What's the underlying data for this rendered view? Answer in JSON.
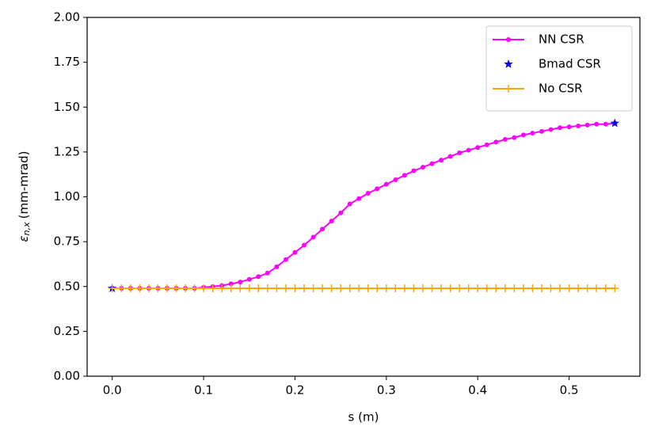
{
  "chart_data": {
    "type": "line",
    "xlabel": "s (m)",
    "ylabel": {
      "symbol": "ε",
      "subscript": "n,x",
      "unit": "(mm-mrad)"
    },
    "xlim": [
      -0.0275,
      0.5775
    ],
    "ylim": [
      0,
      2
    ],
    "xticks": [
      {
        "value": 0,
        "label": "0.0"
      },
      0.1,
      0.2,
      0.3,
      0.4,
      0.5
    ],
    "yticks": [
      {
        "value": 0,
        "label": "0.00"
      },
      0.25,
      {
        "value": 0.5,
        "label": "0.50"
      },
      0.75,
      {
        "value": 1,
        "label": "1.00"
      },
      1.25,
      {
        "value": 1.5,
        "label": "1.50"
      },
      1.75,
      {
        "value": 2,
        "label": "2.00"
      }
    ],
    "legend": "upper right",
    "series": [
      {
        "name": "NN CSR",
        "color": "#ff00ff",
        "marker": "dot",
        "line": true,
        "x": [
          0,
          0.01,
          0.02,
          0.03,
          0.04,
          0.05,
          0.06,
          0.07,
          0.08,
          0.09,
          0.1,
          0.11,
          0.12,
          0.13,
          0.14,
          0.15,
          0.16,
          0.17,
          0.18,
          0.19,
          0.2,
          0.21,
          0.22,
          0.23,
          0.24,
          0.25,
          0.26,
          0.27,
          0.28,
          0.29,
          0.3,
          0.31,
          0.32,
          0.33,
          0.34,
          0.35,
          0.36,
          0.37,
          0.38,
          0.39,
          0.4,
          0.41,
          0.42,
          0.43,
          0.44,
          0.45,
          0.46,
          0.47,
          0.48,
          0.49,
          0.5,
          0.51,
          0.52,
          0.53,
          0.54,
          0.55
        ],
        "values": [
          0.49,
          0.49,
          0.49,
          0.49,
          0.49,
          0.49,
          0.49,
          0.49,
          0.49,
          0.49,
          0.495,
          0.5,
          0.505,
          0.515,
          0.525,
          0.54,
          0.555,
          0.575,
          0.61,
          0.65,
          0.69,
          0.73,
          0.775,
          0.82,
          0.865,
          0.91,
          0.96,
          0.99,
          1.02,
          1.045,
          1.07,
          1.095,
          1.12,
          1.145,
          1.165,
          1.185,
          1.205,
          1.225,
          1.245,
          1.26,
          1.275,
          1.29,
          1.305,
          1.32,
          1.33,
          1.345,
          1.355,
          1.365,
          1.375,
          1.385,
          1.39,
          1.395,
          1.4,
          1.405,
          1.405,
          1.41
        ]
      },
      {
        "name": "Bmad CSR",
        "color": "#0000ff",
        "marker": "star",
        "line": false,
        "x": [
          0,
          0.55
        ],
        "values": [
          0.49,
          1.41
        ]
      },
      {
        "name": "No CSR",
        "color": "#ffa500",
        "marker": "plus",
        "line": true,
        "x": [
          0,
          0.01,
          0.02,
          0.03,
          0.04,
          0.05,
          0.06,
          0.07,
          0.08,
          0.09,
          0.1,
          0.11,
          0.12,
          0.13,
          0.14,
          0.15,
          0.16,
          0.17,
          0.18,
          0.19,
          0.2,
          0.21,
          0.22,
          0.23,
          0.24,
          0.25,
          0.26,
          0.27,
          0.28,
          0.29,
          0.3,
          0.31,
          0.32,
          0.33,
          0.34,
          0.35,
          0.36,
          0.37,
          0.38,
          0.39,
          0.4,
          0.41,
          0.42,
          0.43,
          0.44,
          0.45,
          0.46,
          0.47,
          0.48,
          0.49,
          0.5,
          0.51,
          0.52,
          0.53,
          0.54,
          0.55
        ],
        "values": [
          0.49,
          0.49,
          0.49,
          0.49,
          0.49,
          0.49,
          0.49,
          0.49,
          0.49,
          0.49,
          0.49,
          0.49,
          0.49,
          0.49,
          0.49,
          0.49,
          0.49,
          0.49,
          0.49,
          0.49,
          0.49,
          0.49,
          0.49,
          0.49,
          0.49,
          0.49,
          0.49,
          0.49,
          0.49,
          0.49,
          0.49,
          0.49,
          0.49,
          0.49,
          0.49,
          0.49,
          0.49,
          0.49,
          0.49,
          0.49,
          0.49,
          0.49,
          0.49,
          0.49,
          0.49,
          0.49,
          0.49,
          0.49,
          0.49,
          0.49,
          0.49,
          0.49,
          0.49,
          0.49,
          0.49,
          0.49
        ]
      }
    ]
  }
}
